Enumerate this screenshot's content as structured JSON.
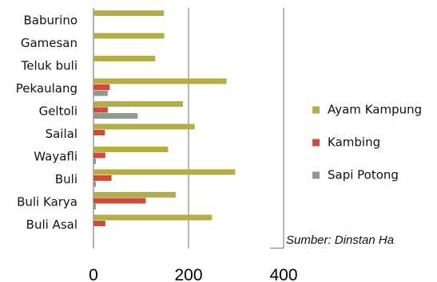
{
  "chart_data": {
    "type": "bar",
    "orientation": "horizontal",
    "categories": [
      "Baburino",
      "Gamesan",
      "Teluk buli",
      "Pekaulang",
      "Geltoli",
      "Sailal",
      "Wayafli",
      "Buli",
      "Buli Karya",
      "Buli Asal"
    ],
    "series": [
      {
        "name": "Ayam Kampung",
        "color": "#B5AE45",
        "values": [
          148,
          149,
          130,
          280,
          188,
          213,
          157,
          298,
          173,
          249
        ]
      },
      {
        "name": "Kambing",
        "color": "#D24B3A",
        "values": [
          0,
          0,
          0,
          34,
          30,
          24,
          25,
          38,
          110,
          25
        ]
      },
      {
        "name": "Sapi Potong",
        "color": "#8C9A92",
        "values": [
          0,
          0,
          0,
          30,
          93,
          0,
          5,
          5,
          5,
          0
        ]
      }
    ],
    "xlim": [
      0,
      400
    ],
    "xticks": [
      "0",
      "200",
      "400"
    ],
    "grid": true,
    "legend_position": "right",
    "annotation": "Sumber: Dinstan Ha"
  }
}
